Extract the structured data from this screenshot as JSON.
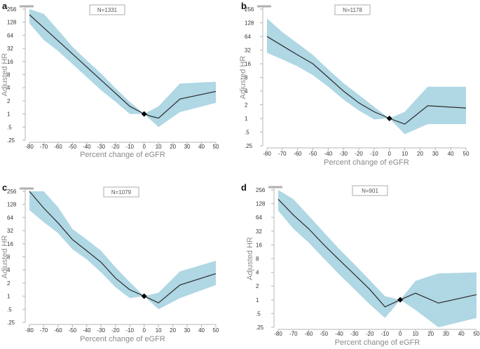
{
  "chart_data": [
    {
      "panel": "a",
      "type": "line",
      "n_label": "N=1331",
      "xlabel": "Percent change of eGFR",
      "ylabel": "Adjusted HR",
      "xlim": [
        -80,
        50
      ],
      "x_ticks": [
        -80,
        -70,
        -60,
        -50,
        -40,
        -30,
        -20,
        -10,
        0,
        10,
        20,
        30,
        40,
        50
      ],
      "x_tick_labels": [
        "-80",
        "-70",
        "-60",
        "-50",
        "-40",
        "-30",
        "-20",
        "-10",
        "0",
        "10",
        "20",
        "30",
        "40",
        "50"
      ],
      "y_scale": "log2",
      "ylim": [
        0.25,
        256
      ],
      "y_ticks": [
        0.25,
        0.5,
        1,
        2,
        4,
        8,
        16,
        32,
        64,
        128,
        256
      ],
      "y_tick_labels": [
        ".25",
        ".5",
        "1",
        "2",
        "4",
        "8",
        "16",
        "32",
        "64",
        "128",
        "256"
      ],
      "series": [
        {
          "name": "Adjusted HR",
          "x": [
            -80,
            -70,
            -60,
            -50,
            -40,
            -30,
            -20,
            -10,
            0,
            5,
            10,
            25,
            50
          ],
          "y": [
            190,
            95,
            48,
            24,
            12,
            6,
            3,
            1.5,
            1,
            0.88,
            0.8,
            2.2,
            3.3
          ]
        },
        {
          "name": "95% CI upper",
          "x": [
            -80,
            -70,
            -60,
            -50,
            -40,
            -30,
            -20,
            -10,
            0,
            10,
            25,
            50
          ],
          "y": [
            256,
            200,
            85,
            35,
            17,
            8.5,
            3.9,
            1.9,
            1,
            1.5,
            5,
            5.5
          ]
        },
        {
          "name": "95% CI lower",
          "x": [
            -80,
            -70,
            -60,
            -50,
            -40,
            -30,
            -20,
            -10,
            0,
            10,
            25,
            50
          ],
          "y": [
            120,
            50,
            28,
            14,
            7,
            3.5,
            1.9,
            1.0,
            1,
            0.5,
            1.1,
            1.8
          ]
        }
      ]
    },
    {
      "panel": "b",
      "type": "line",
      "n_label": "N=1178",
      "xlabel": "Percent change of eGFR",
      "ylabel": "Adjusted HR",
      "xlim": [
        -80,
        50
      ],
      "x_ticks": [
        -80,
        -70,
        -60,
        -50,
        -40,
        -30,
        -20,
        -10,
        0,
        10,
        20,
        30,
        40,
        50
      ],
      "x_tick_labels": [
        "-80",
        "-70",
        "-60",
        "-50",
        "-40",
        "-30",
        "-20",
        "-10",
        "0",
        "10",
        "20",
        "30",
        "40",
        "50"
      ],
      "y_scale": "log2",
      "ylim": [
        0.25,
        256
      ],
      "y_ticks": [
        0.25,
        0.5,
        1,
        2,
        4,
        8,
        16,
        32,
        64,
        128,
        256
      ],
      "y_tick_labels": [
        ".25",
        ".5",
        "1",
        "2",
        "4",
        "8",
        "16",
        "32",
        "64",
        "128",
        "256"
      ],
      "series": [
        {
          "name": "Adjusted HR",
          "x": [
            -80,
            -70,
            -60,
            -50,
            -40,
            -30,
            -20,
            -10,
            0,
            10,
            25,
            50
          ],
          "y": [
            64,
            40,
            25,
            16,
            8,
            4,
            2.2,
            1.4,
            1,
            0.75,
            1.9,
            1.7
          ]
        },
        {
          "name": "95% CI upper",
          "x": [
            -80,
            -70,
            -60,
            -50,
            -40,
            -30,
            -20,
            -10,
            0,
            10,
            25,
            50
          ],
          "y": [
            160,
            80,
            45,
            25,
            12,
            6,
            3.3,
            1.8,
            1,
            1.4,
            5,
            5
          ]
        },
        {
          "name": "95% CI lower",
          "x": [
            -80,
            -70,
            -60,
            -50,
            -40,
            -30,
            -20,
            -10,
            0,
            10,
            25,
            50
          ],
          "y": [
            28,
            20,
            14,
            9,
            5,
            2.6,
            1.5,
            0.95,
            1,
            0.45,
            0.75,
            0.75
          ]
        }
      ]
    },
    {
      "panel": "c",
      "type": "line",
      "n_label": "N=1079",
      "xlabel": "Percent change of eGFR",
      "ylabel": "Adjusted HR",
      "xlim": [
        -80,
        50
      ],
      "x_ticks": [
        -80,
        -70,
        -60,
        -50,
        -40,
        -30,
        -20,
        -10,
        0,
        10,
        20,
        30,
        40,
        50
      ],
      "x_tick_labels": [
        "-80",
        "-70",
        "-60",
        "-50",
        "-40",
        "-30",
        "-20",
        "-10",
        "0",
        "10",
        "20",
        "30",
        "40",
        "50"
      ],
      "y_scale": "log2",
      "ylim": [
        0.25,
        256
      ],
      "y_ticks": [
        0.25,
        0.5,
        1,
        2,
        4,
        8,
        16,
        32,
        64,
        128,
        256
      ],
      "y_tick_labels": [
        ".25",
        ".5",
        "1",
        "2",
        "4",
        "8",
        "16",
        "32",
        "64",
        "128",
        "256"
      ],
      "series": [
        {
          "name": "Adjusted HR",
          "x": [
            -80,
            -70,
            -60,
            -50,
            -40,
            -30,
            -20,
            -10,
            0,
            10,
            25,
            50
          ],
          "y": [
            256,
            105,
            48,
            20,
            11,
            6,
            2.6,
            1.4,
            1,
            0.7,
            1.8,
            3.3
          ]
        },
        {
          "name": "95% CI upper",
          "x": [
            -80,
            -70,
            -60,
            -50,
            -40,
            -30,
            -20,
            -10,
            0,
            10,
            25,
            50
          ],
          "y": [
            256,
            256,
            110,
            35,
            20,
            11,
            4.6,
            2.1,
            1,
            1.2,
            3.7,
            6.5
          ]
        },
        {
          "name": "95% CI lower",
          "x": [
            -80,
            -70,
            -60,
            -50,
            -40,
            -30,
            -20,
            -10,
            0,
            10,
            25,
            50
          ],
          "y": [
            95,
            50,
            28,
            12,
            7,
            3.5,
            1.6,
            0.9,
            1,
            0.5,
            0.9,
            1.8
          ]
        }
      ]
    },
    {
      "panel": "d",
      "type": "line",
      "n_label": "N=901",
      "xlabel": "Percent change of eGFR",
      "ylabel": "Adjusted HR",
      "xlim": [
        -80,
        50
      ],
      "x_ticks": [
        -80,
        -70,
        -60,
        -50,
        -40,
        -30,
        -20,
        -10,
        0,
        10,
        20,
        30,
        40,
        50
      ],
      "x_tick_labels": [
        "-80",
        "-70",
        "-60",
        "-50",
        "-40",
        "-30",
        "-20",
        "-10",
        "0",
        "10",
        "20",
        "30",
        "40",
        "50"
      ],
      "y_scale": "log2",
      "ylim": [
        0.25,
        256
      ],
      "y_ticks": [
        0.25,
        0.5,
        1,
        2,
        4,
        8,
        16,
        32,
        64,
        128,
        256
      ],
      "y_tick_labels": [
        ".25",
        ".5",
        "1",
        "2",
        "4",
        "8",
        "16",
        "32",
        "64",
        "128",
        "256"
      ],
      "series": [
        {
          "name": "Adjusted HR",
          "x": [
            -80,
            -70,
            -60,
            -50,
            -40,
            -30,
            -20,
            -10,
            0,
            10,
            25,
            50
          ],
          "y": [
            160,
            72,
            36,
            16,
            7.5,
            3.6,
            1.7,
            0.7,
            1,
            1.4,
            0.85,
            1.3
          ]
        },
        {
          "name": "95% CI upper",
          "x": [
            -80,
            -70,
            -60,
            -50,
            -40,
            -30,
            -20,
            -10,
            0,
            10,
            25,
            50
          ],
          "y": [
            256,
            160,
            70,
            30,
            13,
            6,
            2.7,
            1.2,
            1,
            2.6,
            3.8,
            4
          ]
        },
        {
          "name": "95% CI lower",
          "x": [
            -80,
            -70,
            -60,
            -50,
            -40,
            -30,
            -20,
            -10,
            0,
            10,
            25,
            50
          ],
          "y": [
            90,
            36,
            18,
            8,
            3.6,
            1.7,
            0.8,
            0.4,
            1,
            0.6,
            0.25,
            0.4
          ]
        }
      ]
    }
  ],
  "colors": {
    "band": "#a6d3e1",
    "line": "#2c2c2c",
    "axis": "#b5b5b5",
    "axis_title": "#8a8a8a"
  }
}
